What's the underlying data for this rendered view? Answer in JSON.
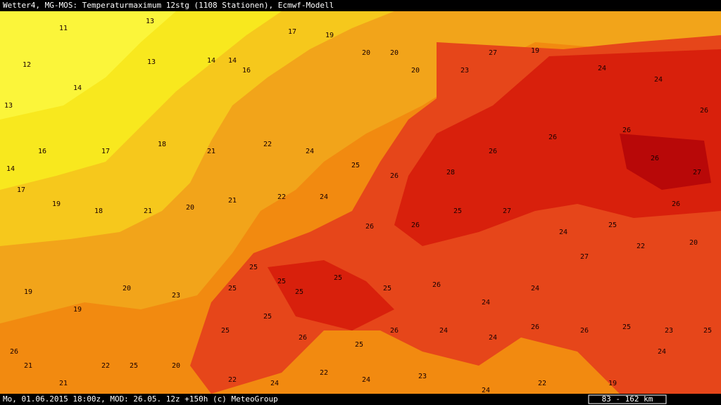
{
  "header": {
    "title": "Wetter4, MG-MOS: Temperaturmaximum 12stg (1108 Stationen), Ecmwf-Modell"
  },
  "footer": {
    "left": "Mo, 01.06.2015 18:00z, MOD: 26.05. 12z +150h (c) MeteoGroup",
    "scale": "83 - 162 km"
  },
  "stations": [
    11,
    13,
    12,
    14,
    13,
    13,
    14,
    14,
    16,
    17,
    19,
    20,
    20,
    20,
    23,
    27,
    19,
    24,
    24,
    26,
    27,
    26,
    26,
    26,
    26,
    28,
    26,
    25,
    24,
    22,
    21,
    18,
    17,
    16,
    14,
    17,
    19,
    18,
    21,
    20,
    21,
    22,
    24,
    26,
    26,
    25,
    27,
    24,
    25,
    26,
    20,
    22,
    27,
    24,
    24,
    26,
    25,
    25,
    25,
    25,
    23,
    20,
    19,
    19,
    26,
    21,
    21,
    22,
    25,
    20,
    25,
    25,
    26,
    25,
    26,
    24,
    24,
    26,
    26,
    25,
    23,
    25,
    24,
    19,
    22,
    24,
    23,
    24,
    22,
    24,
    22,
    25,
    25
  ]
}
